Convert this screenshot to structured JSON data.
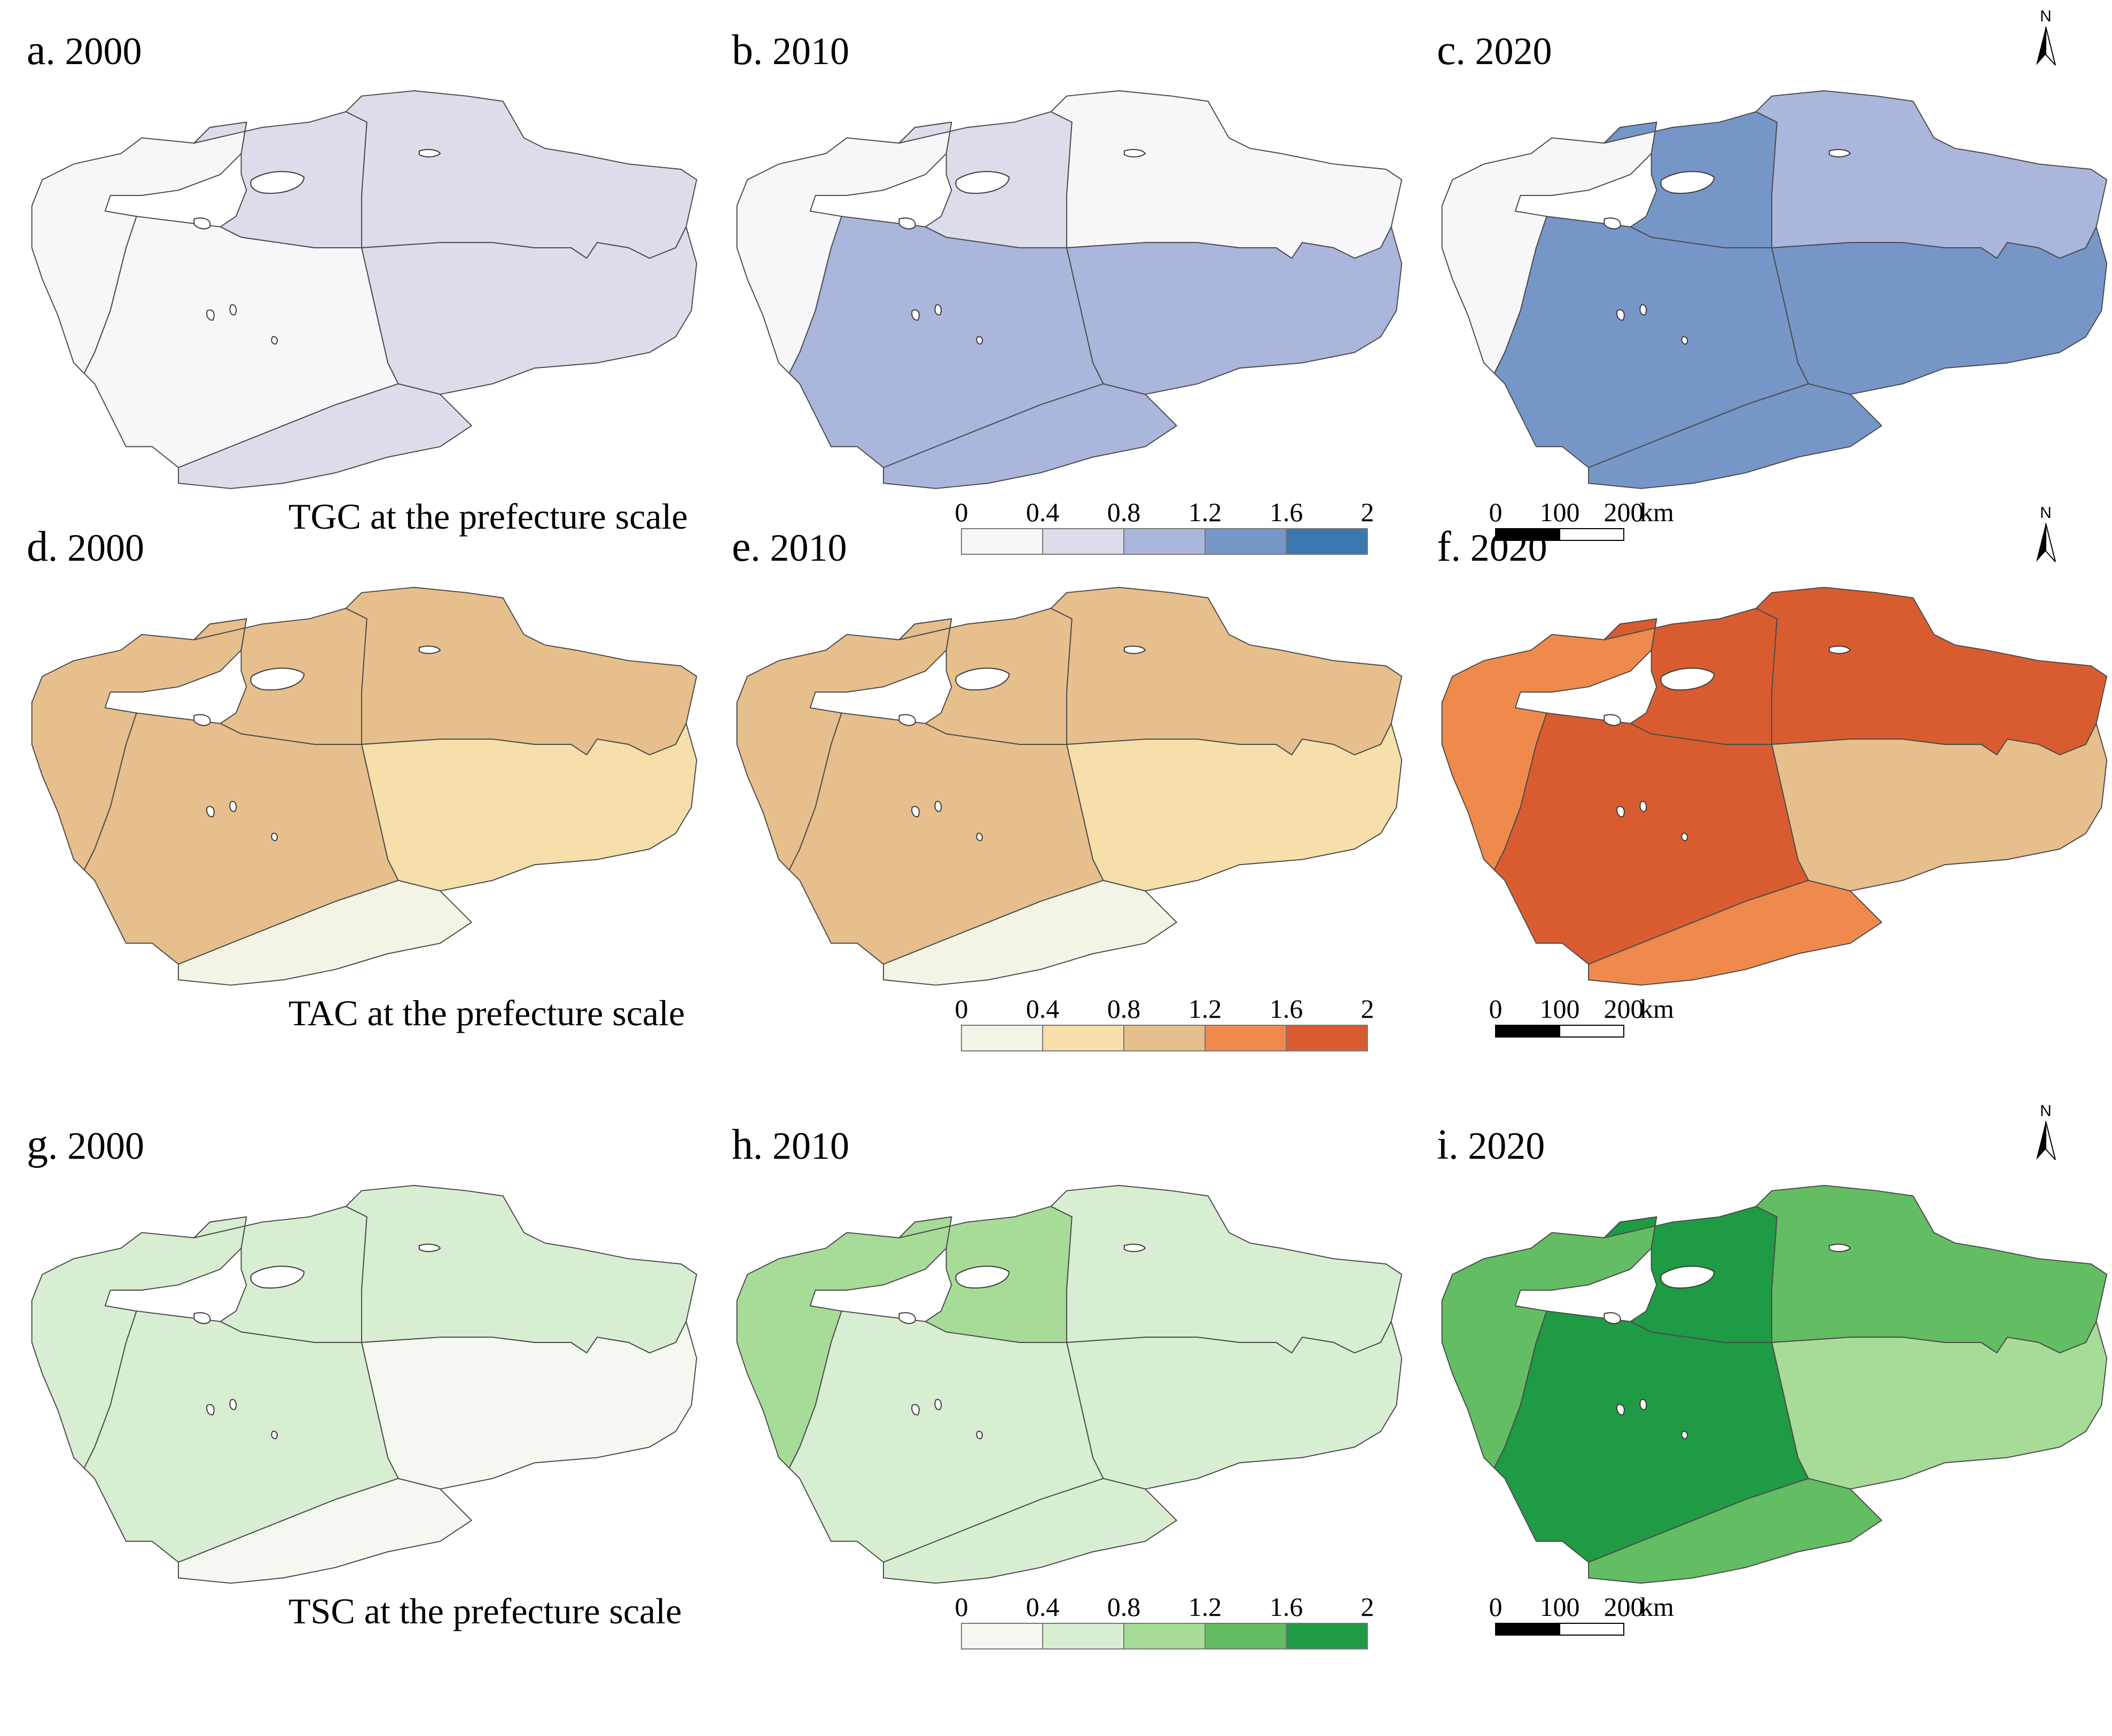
{
  "rows": [
    {
      "id": "tgc",
      "title": "TGC at the prefecture scale",
      "colors": [
        "#f7f6f9",
        "#dcdcea",
        "#abb6dd",
        "#7696c8",
        "#3b78b0"
      ],
      "legend_ticks": [
        "0",
        "0.4",
        "0.8",
        "1.2",
        "1.6",
        "2"
      ],
      "panels": [
        {
          "letter": "a",
          "year": "2000",
          "classes": [
            0,
            1,
            1,
            1,
            0,
            1
          ]
        },
        {
          "letter": "b",
          "year": "2010",
          "classes": [
            0,
            1,
            0,
            2,
            2,
            2
          ]
        },
        {
          "letter": "c",
          "year": "2020",
          "classes": [
            0,
            3,
            2,
            3,
            3,
            3
          ]
        }
      ]
    },
    {
      "id": "tac",
      "title": "TAC at the prefecture scale",
      "colors": [
        "#f4f4e6",
        "#f6dfab",
        "#e6bf8d",
        "#ef8a4c",
        "#d95c31"
      ],
      "legend_ticks": [
        "0",
        "0.4",
        "0.8",
        "1.2",
        "1.6",
        "2"
      ],
      "panels": [
        {
          "letter": "d",
          "year": "2000",
          "classes": [
            2,
            2,
            2,
            1,
            2,
            0
          ]
        },
        {
          "letter": "e",
          "year": "2010",
          "classes": [
            2,
            2,
            2,
            1,
            2,
            0
          ]
        },
        {
          "letter": "f",
          "year": "2020",
          "classes": [
            3,
            4,
            4,
            2,
            4,
            3
          ]
        }
      ]
    },
    {
      "id": "tsc",
      "title": "TSC at the prefecture scale",
      "colors": [
        "#f4f8f1",
        "#d8eed2",
        "#a7dc98",
        "#63bd63",
        "#1f9a45"
      ],
      "legend_ticks": [
        "0",
        "0.4",
        "0.8",
        "1.2",
        "1.6",
        "2"
      ],
      "panels": [
        {
          "letter": "g",
          "year": "2000",
          "classes": [
            1,
            1,
            1,
            0,
            1,
            0
          ]
        },
        {
          "letter": "h",
          "year": "2010",
          "classes": [
            2,
            2,
            1,
            1,
            1,
            1
          ]
        },
        {
          "letter": "i",
          "year": "2020",
          "classes": [
            3,
            4,
            3,
            2,
            4,
            3
          ]
        }
      ]
    }
  ],
  "scalebar": {
    "ticks": [
      "0",
      "100",
      "200"
    ],
    "unit": "km"
  },
  "north_arrow": {
    "label": "N",
    "icon": "north-arrow-icon"
  }
}
